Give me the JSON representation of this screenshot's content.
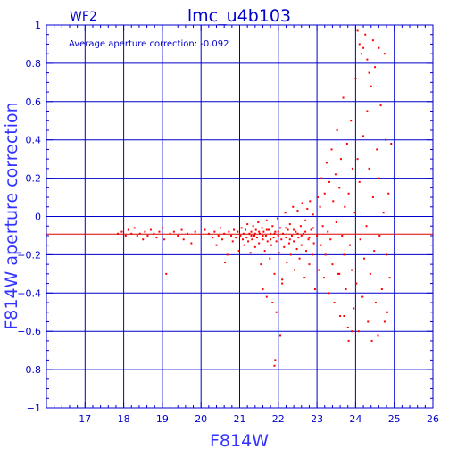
{
  "chart_data": {
    "type": "scatter",
    "title": "lmc_u4b103",
    "panel_label": "WF2",
    "annotation": "Average aperture correction: -0.092",
    "xlabel": "F814W",
    "ylabel": "F814W aperture correction",
    "xlim": [
      16,
      26
    ],
    "ylim": [
      -1,
      1
    ],
    "x_ticks": [
      17,
      18,
      19,
      20,
      21,
      22,
      23,
      24,
      25,
      26
    ],
    "y_ticks": [
      -1,
      -0.8,
      -0.6,
      -0.4,
      -0.2,
      0,
      0.2,
      0.4,
      0.6,
      0.8,
      1
    ],
    "x_tick_labels": [
      "17",
      "18",
      "19",
      "20",
      "21",
      "22",
      "23",
      "24",
      "25",
      "26"
    ],
    "y_tick_labels": [
      "−1",
      "−0.8",
      "−0.6",
      "−0.4",
      "−0.2",
      "0",
      "0.2",
      "0.4",
      "0.6",
      "0.8",
      "1"
    ],
    "grid": true,
    "reference_line": {
      "y": -0.092
    },
    "colors": {
      "axes": "#0000cc",
      "points": "#ff0000",
      "reference": "#dd0000"
    },
    "series": [
      {
        "points": [
          [
            17.85,
            -0.09
          ],
          [
            17.95,
            -0.08
          ],
          [
            18.05,
            -0.1
          ],
          [
            18.12,
            -0.07
          ],
          [
            18.2,
            -0.09
          ],
          [
            18.28,
            -0.06
          ],
          [
            18.35,
            -0.1
          ],
          [
            18.42,
            -0.09
          ],
          [
            18.5,
            -0.12
          ],
          [
            18.55,
            -0.08
          ],
          [
            18.62,
            -0.1
          ],
          [
            18.7,
            -0.07
          ],
          [
            18.78,
            -0.09
          ],
          [
            18.85,
            -0.11
          ],
          [
            18.92,
            -0.08
          ],
          [
            19.0,
            -0.06
          ],
          [
            19.05,
            -0.12
          ],
          [
            19.1,
            -0.3
          ],
          [
            19.2,
            -0.09
          ],
          [
            19.3,
            -0.08
          ],
          [
            19.4,
            -0.1
          ],
          [
            19.5,
            -0.07
          ],
          [
            19.55,
            -0.12
          ],
          [
            19.65,
            -0.09
          ],
          [
            19.75,
            -0.14
          ],
          [
            19.85,
            -0.08
          ],
          [
            20.1,
            -0.07
          ],
          [
            20.2,
            -0.09
          ],
          [
            20.3,
            -0.11
          ],
          [
            20.35,
            -0.08
          ],
          [
            20.4,
            -0.15
          ],
          [
            20.45,
            -0.1
          ],
          [
            20.5,
            -0.06
          ],
          [
            20.55,
            -0.12
          ],
          [
            20.6,
            -0.09
          ],
          [
            20.62,
            -0.24
          ],
          [
            20.68,
            -0.2
          ],
          [
            20.72,
            -0.08
          ],
          [
            20.78,
            -0.1
          ],
          [
            20.82,
            -0.13
          ],
          [
            20.85,
            -0.07
          ],
          [
            20.9,
            -0.11
          ],
          [
            20.95,
            -0.08
          ],
          [
            20.98,
            -0.18
          ],
          [
            21.02,
            -0.1
          ],
          [
            21.05,
            -0.06
          ],
          [
            21.08,
            -0.12
          ],
          [
            21.1,
            -0.09
          ],
          [
            21.12,
            -0.15
          ],
          [
            21.15,
            -0.07
          ],
          [
            21.18,
            -0.11
          ],
          [
            21.2,
            -0.04
          ],
          [
            21.22,
            -0.13
          ],
          [
            21.25,
            -0.09
          ],
          [
            21.28,
            -0.19
          ],
          [
            21.3,
            -0.08
          ],
          [
            21.32,
            -0.12
          ],
          [
            21.35,
            -0.05
          ],
          [
            21.38,
            -0.1
          ],
          [
            21.4,
            -0.16
          ],
          [
            21.42,
            -0.07
          ],
          [
            21.45,
            -0.11
          ],
          [
            21.48,
            -0.03
          ],
          [
            21.5,
            -0.14
          ],
          [
            21.52,
            -0.09
          ],
          [
            21.55,
            -0.25
          ],
          [
            21.58,
            -0.06
          ],
          [
            21.6,
            -0.12
          ],
          [
            21.62,
            -0.08
          ],
          [
            21.65,
            -0.18
          ],
          [
            21.68,
            -0.1
          ],
          [
            21.7,
            -0.02
          ],
          [
            21.72,
            -0.13
          ],
          [
            21.75,
            -0.07
          ],
          [
            21.78,
            -0.22
          ],
          [
            21.8,
            -0.09
          ],
          [
            21.82,
            -0.15
          ],
          [
            21.85,
            -0.05
          ],
          [
            21.88,
            -0.11
          ],
          [
            21.9,
            -0.3
          ],
          [
            21.92,
            -0.08
          ],
          [
            21.95,
            -0.13
          ],
          [
            21.98,
            -0.01
          ],
          [
            22.0,
            -0.1
          ],
          [
            22.02,
            -0.19
          ],
          [
            22.05,
            -0.06
          ],
          [
            22.08,
            -0.12
          ],
          [
            22.1,
            -0.35
          ],
          [
            22.12,
            -0.09
          ],
          [
            22.15,
            -0.16
          ],
          [
            22.18,
            0.02
          ],
          [
            22.2,
            -0.11
          ],
          [
            22.22,
            -0.24
          ],
          [
            22.25,
            -0.07
          ],
          [
            22.28,
            -0.14
          ],
          [
            22.3,
            -0.04
          ],
          [
            22.32,
            -0.2
          ],
          [
            22.35,
            -0.1
          ],
          [
            22.38,
            0.05
          ],
          [
            22.4,
            -0.13
          ],
          [
            22.42,
            -0.28
          ],
          [
            22.45,
            -0.08
          ],
          [
            22.48,
            -0.17
          ],
          [
            22.5,
            0.03
          ],
          [
            22.52,
            -0.11
          ],
          [
            22.55,
            -0.22
          ],
          [
            22.58,
            -0.05
          ],
          [
            22.6,
            -0.15
          ],
          [
            22.62,
            0.07
          ],
          [
            22.65,
            -0.09
          ],
          [
            22.68,
            -0.32
          ],
          [
            22.7,
            -0.02
          ],
          [
            22.72,
            -0.18
          ],
          [
            22.75,
            0.04
          ],
          [
            22.78,
            -0.12
          ],
          [
            22.8,
            -0.25
          ],
          [
            22.82,
            0.08
          ],
          [
            22.85,
            -0.07
          ],
          [
            22.88,
            -0.2
          ],
          [
            22.9,
            0.01
          ],
          [
            22.92,
            -0.14
          ],
          [
            22.95,
            -0.38
          ],
          [
            21.6,
            -0.38
          ],
          [
            21.7,
            -0.42
          ],
          [
            21.85,
            -0.45
          ],
          [
            21.95,
            -0.5
          ],
          [
            21.9,
            -0.78
          ],
          [
            21.92,
            -0.75
          ],
          [
            22.05,
            -0.62
          ],
          [
            22.1,
            -0.33
          ],
          [
            23.0,
            -0.1
          ],
          [
            23.02,
            0.1
          ],
          [
            23.05,
            -0.28
          ],
          [
            23.08,
            0.05
          ],
          [
            23.1,
            -0.15
          ],
          [
            23.12,
            0.2
          ],
          [
            23.15,
            -0.05
          ],
          [
            23.18,
            -0.32
          ],
          [
            23.2,
            0.12
          ],
          [
            23.22,
            -0.2
          ],
          [
            23.25,
            0.28
          ],
          [
            23.28,
            -0.08
          ],
          [
            23.3,
            -0.4
          ],
          [
            23.32,
            0.18
          ],
          [
            23.35,
            -0.12
          ],
          [
            23.38,
            0.35
          ],
          [
            23.4,
            -0.25
          ],
          [
            23.42,
            0.08
          ],
          [
            23.45,
            -0.45
          ],
          [
            23.48,
            0.22
          ],
          [
            23.5,
            -0.03
          ],
          [
            23.52,
            0.45
          ],
          [
            23.55,
            -0.3
          ],
          [
            23.58,
            0.15
          ],
          [
            23.6,
            -0.52
          ],
          [
            23.62,
            0.3
          ],
          [
            23.65,
            -0.1
          ],
          [
            23.68,
            0.62
          ],
          [
            23.7,
            -0.2
          ],
          [
            23.72,
            0.05
          ],
          [
            23.75,
            -0.38
          ],
          [
            23.78,
            0.38
          ],
          [
            23.8,
            -0.58
          ],
          [
            23.82,
            0.12
          ],
          [
            23.85,
            -0.15
          ],
          [
            23.88,
            0.5
          ],
          [
            23.9,
            -0.28
          ],
          [
            23.92,
            0.25
          ],
          [
            23.95,
            -0.48
          ],
          [
            23.98,
            0.02
          ],
          [
            24.0,
            0.72
          ],
          [
            24.02,
            -0.35
          ],
          [
            24.05,
            0.3
          ],
          [
            24.08,
            -0.6
          ],
          [
            24.1,
            0.18
          ],
          [
            24.12,
            -0.12
          ],
          [
            24.15,
            0.85
          ],
          [
            24.18,
            -0.42
          ],
          [
            24.2,
            0.42
          ],
          [
            24.22,
            -0.22
          ],
          [
            24.25,
            0.95
          ],
          [
            24.28,
            -0.05
          ],
          [
            24.3,
            0.55
          ],
          [
            24.32,
            -0.55
          ],
          [
            24.35,
            0.25
          ],
          [
            24.38,
            -0.3
          ],
          [
            24.4,
            0.68
          ],
          [
            24.42,
            -0.65
          ],
          [
            24.45,
            0.1
          ],
          [
            24.48,
            -0.18
          ],
          [
            24.5,
            0.78
          ],
          [
            24.52,
            -0.45
          ],
          [
            24.55,
            0.35
          ],
          [
            24.58,
            -0.62
          ],
          [
            24.6,
            0.2
          ],
          [
            24.62,
            -0.1
          ],
          [
            24.65,
            0.58
          ],
          [
            24.68,
            -0.38
          ],
          [
            24.72,
            0.02
          ],
          [
            24.75,
            -0.55
          ],
          [
            24.78,
            0.4
          ],
          [
            24.8,
            -0.2
          ],
          [
            24.82,
            -0.5
          ],
          [
            24.85,
            0.12
          ],
          [
            24.88,
            -0.32
          ],
          [
            24.92,
            0.38
          ],
          [
            23.58,
            -0.3
          ],
          [
            23.7,
            -0.52
          ],
          [
            23.82,
            -0.65
          ],
          [
            23.9,
            -0.6
          ],
          [
            24.05,
            0.97
          ],
          [
            24.1,
            0.9
          ],
          [
            24.2,
            0.88
          ],
          [
            24.3,
            0.82
          ],
          [
            24.35,
            0.75
          ],
          [
            24.45,
            0.92
          ],
          [
            24.6,
            0.88
          ],
          [
            24.75,
            0.85
          ],
          [
            22.2,
            -0.06
          ],
          [
            22.3,
            -0.12
          ],
          [
            22.4,
            -0.07
          ],
          [
            22.5,
            -0.09
          ],
          [
            22.6,
            -0.1
          ],
          [
            22.7,
            -0.08
          ],
          [
            22.8,
            -0.11
          ],
          [
            22.9,
            -0.06
          ],
          [
            21.3,
            -0.1
          ],
          [
            21.4,
            -0.09
          ],
          [
            21.5,
            -0.08
          ],
          [
            21.6,
            -0.1
          ],
          [
            21.7,
            -0.07
          ],
          [
            21.8,
            -0.12
          ],
          [
            21.9,
            -0.09
          ],
          [
            22.0,
            -0.08
          ]
        ]
      }
    ]
  }
}
